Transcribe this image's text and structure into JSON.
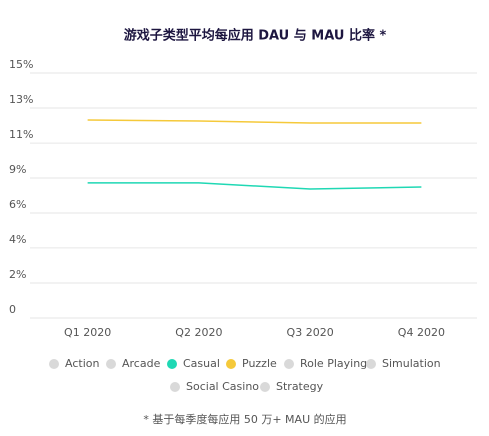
{
  "chart_data": {
    "type": "line",
    "title": "游戏子类型平均每应用 DAU 与 MAU 比率 *",
    "footnote": "* 基于每季度每应用 50 万+ MAU 的应用",
    "categories": [
      "Q1 2020",
      "Q2 2020",
      "Q3 2020",
      "Q4 2020"
    ],
    "ylim": [
      0,
      15
    ],
    "yticks": [
      0,
      {
        "value": 2.14,
        "label": "2%"
      },
      {
        "value": 4.29,
        "label": "4%"
      },
      {
        "value": 6.43,
        "label": "6%"
      },
      {
        "value": 8.57,
        "label": "9%"
      },
      {
        "value": 10.71,
        "label": "11%"
      },
      {
        "value": 12.86,
        "label": "13%"
      },
      {
        "value": 15,
        "label": "15%"
      }
    ],
    "grid": true,
    "series": [
      {
        "name": "Action",
        "color": "#d9d9d9",
        "values": [
          null,
          null,
          null,
          null
        ]
      },
      {
        "name": "Arcade",
        "color": "#d9d9d9",
        "values": [
          null,
          null,
          null,
          null
        ]
      },
      {
        "name": "Casual",
        "color": "#1fd8b4",
        "values": [
          8.27,
          8.27,
          7.9,
          8.02
        ]
      },
      {
        "name": "Puzzle",
        "color": "#f5c93a",
        "values": [
          12.12,
          12.06,
          11.94,
          11.94
        ]
      },
      {
        "name": "Role Playing",
        "color": "#d9d9d9",
        "values": [
          null,
          null,
          null,
          null
        ]
      },
      {
        "name": "Simulation",
        "color": "#d9d9d9",
        "values": [
          null,
          null,
          null,
          null
        ]
      },
      {
        "name": "Social Casino",
        "color": "#d9d9d9",
        "values": [
          null,
          null,
          null,
          null
        ]
      },
      {
        "name": "Strategy",
        "color": "#d9d9d9",
        "values": [
          null,
          null,
          null,
          null
        ]
      }
    ]
  }
}
